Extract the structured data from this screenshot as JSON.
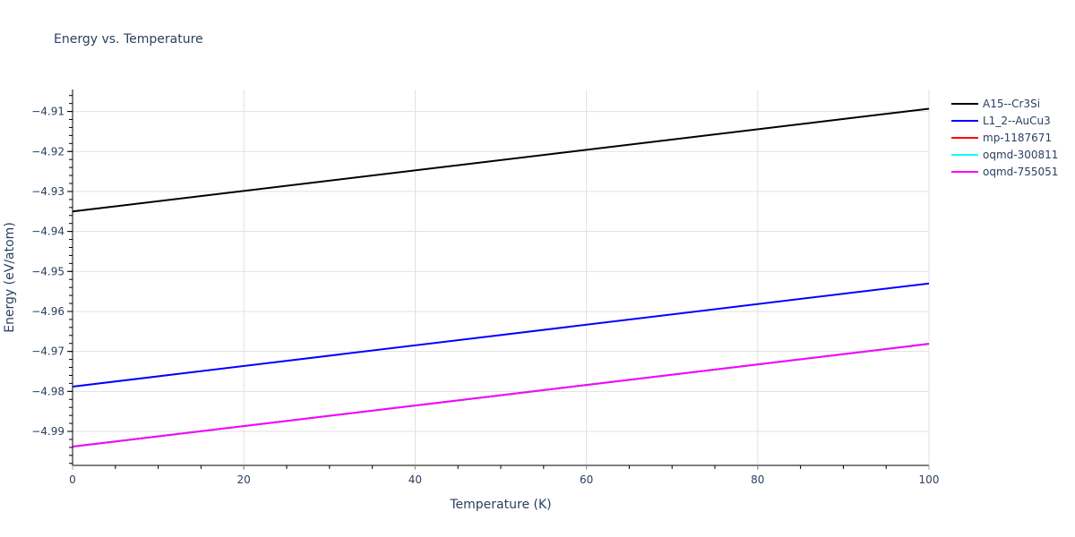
{
  "title": "Energy vs. Temperature",
  "chart_data": {
    "type": "line",
    "title": "Energy vs. Temperature",
    "xlabel": "Temperature (K)",
    "ylabel": "Energy (eV/atom)",
    "xlim": [
      0,
      100
    ],
    "ylim": [
      -4.9985,
      -4.9045
    ],
    "x_ticks": [
      0,
      20,
      40,
      60,
      80,
      100
    ],
    "x_tick_labels": [
      "0",
      "20",
      "40",
      "60",
      "80",
      "100"
    ],
    "y_ticks": [
      -4.91,
      -4.92,
      -4.93,
      -4.94,
      -4.95,
      -4.96,
      -4.97,
      -4.98,
      -4.99
    ],
    "y_tick_labels": [
      "−4.91",
      "−4.92",
      "−4.93",
      "−4.94",
      "−4.95",
      "−4.96",
      "−4.97",
      "−4.98",
      "−4.99"
    ],
    "grid": true,
    "legend_position": "right",
    "x": [
      0,
      100
    ],
    "series": [
      {
        "name": "A15--Cr3Si",
        "color": "#000000",
        "values": [
          -4.935,
          -4.9093
        ]
      },
      {
        "name": "L1_2--AuCu3",
        "color": "#0000ff",
        "values": [
          -4.9788,
          -4.953
        ]
      },
      {
        "name": "mp-1187671",
        "color": "#ff0000",
        "values": [
          -4.9938,
          -4.9681
        ]
      },
      {
        "name": "oqmd-300811",
        "color": "#00ffff",
        "values": [
          -4.9938,
          -4.9681
        ]
      },
      {
        "name": "oqmd-755051",
        "color": "#ff00ff",
        "values": [
          -4.9938,
          -4.9681
        ]
      }
    ]
  },
  "legend": {
    "items": [
      {
        "label": "A15--Cr3Si",
        "color": "#000000"
      },
      {
        "label": "L1_2--AuCu3",
        "color": "#0000ff"
      },
      {
        "label": "mp-1187671",
        "color": "#ff0000"
      },
      {
        "label": "oqmd-300811",
        "color": "#00ffff"
      },
      {
        "label": "oqmd-755051",
        "color": "#ff00ff"
      }
    ]
  }
}
